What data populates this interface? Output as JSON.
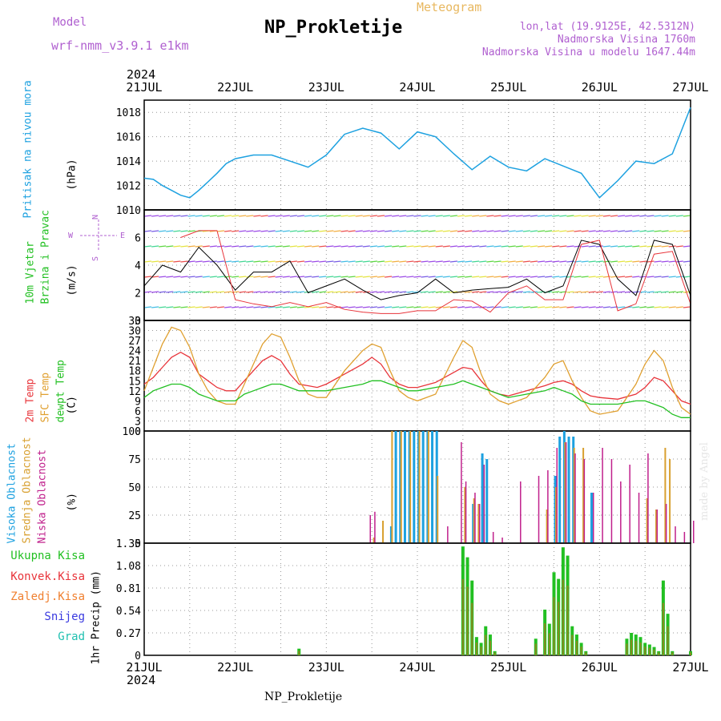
{
  "header": {
    "model_label": "Model",
    "model_name": "wrf-nmm_v3.9.1 e1km",
    "title": "NP_Prokletije",
    "subtitle": "Meteogram",
    "lonlat": "lon,lat (19.9125E, 42.5312N)",
    "elevation": "Nadmorska Visina 1760m",
    "model_elevation": "Nadmorska Visina u modelu 1647.44m",
    "footer_title": "NP_Prokletije",
    "made_by": "made by Angel",
    "year_top": "2024",
    "year_bottom": "2024"
  },
  "time_axis": {
    "labels": [
      "21JUL",
      "22JUL",
      "23JUL",
      "24JUL",
      "25JUL",
      "26JUL",
      "27JUL"
    ]
  },
  "colors": {
    "pressure": "#1da1e0",
    "t2m": "#e8343a",
    "sfc": "#e0a030",
    "dewpt": "#22c022",
    "high_cloud": "#1da1e0",
    "mid_cloud": "#d8a030",
    "low_cloud": "#c0208c",
    "precip_total": "#22c022",
    "precip_conv": "#e8343a",
    "wind_speed": "#000000"
  },
  "chart_data": [
    {
      "type": "line",
      "name": "pressure",
      "ylabel_1": "Pritisak na nivou mora",
      "ylabel_2": "(hPa)",
      "ylim": [
        1010,
        1019
      ],
      "yticks": [
        1010,
        1012,
        1014,
        1016,
        1018
      ],
      "x_days": [
        0.0,
        0.1,
        0.2,
        0.3,
        0.4,
        0.5,
        0.6,
        0.7,
        0.8,
        0.9,
        1.0,
        1.2,
        1.4,
        1.6,
        1.8,
        2.0,
        2.2,
        2.4,
        2.6,
        2.8,
        3.0,
        3.2,
        3.4,
        3.6,
        3.8,
        4.0,
        4.2,
        4.4,
        4.6,
        4.8,
        5.0,
        5.2,
        5.4,
        5.6,
        5.8,
        6.0
      ],
      "values": [
        1012.6,
        1012.5,
        1012.0,
        1011.6,
        1011.2,
        1011.0,
        1011.6,
        1012.3,
        1013.0,
        1013.8,
        1014.2,
        1014.5,
        1014.5,
        1014.0,
        1013.5,
        1014.5,
        1016.2,
        1016.7,
        1016.3,
        1015.0,
        1016.4,
        1016.0,
        1014.6,
        1013.3,
        1014.4,
        1013.5,
        1013.2,
        1014.2,
        1013.6,
        1013.0,
        1011.0,
        1012.4,
        1014.0,
        1013.8,
        1014.6,
        1018.4
      ],
      "series_colors_key": "pressure"
    },
    {
      "type": "line",
      "name": "wind",
      "ylabel_1": "10m Vjetar",
      "ylabel_2": "Brzina i Pravac",
      "ylabel_3": "(m/s)",
      "ylim": [
        0,
        8
      ],
      "yticks": [
        0,
        2,
        4,
        6
      ],
      "compass": {
        "w": "W",
        "e": "E",
        "n": "N",
        "s": "S"
      },
      "x_days": [
        0.0,
        0.2,
        0.4,
        0.6,
        0.8,
        1.0,
        1.2,
        1.4,
        1.6,
        1.8,
        2.0,
        2.2,
        2.4,
        2.6,
        2.8,
        3.0,
        3.2,
        3.4,
        3.6,
        3.8,
        4.0,
        4.2,
        4.4,
        4.6,
        4.8,
        5.0,
        5.2,
        5.4,
        5.6,
        5.8,
        6.0
      ],
      "values": [
        2.5,
        4.0,
        3.5,
        5.3,
        4.0,
        2.2,
        3.5,
        3.5,
        4.3,
        2.0,
        2.5,
        3.0,
        2.2,
        1.5,
        1.8,
        2.0,
        3.0,
        2.0,
        2.2,
        2.3,
        2.4,
        3.0,
        2.0,
        2.5,
        5.8,
        5.5,
        3.0,
        1.8,
        5.8,
        5.5,
        1.8
      ],
      "gust_x_days": [
        0.4,
        0.6,
        0.8,
        1.0,
        1.2,
        1.4,
        1.6,
        1.8,
        2.0,
        2.2,
        2.4,
        2.6,
        2.8,
        3.0,
        3.2,
        3.4,
        3.6,
        3.8,
        4.0,
        4.2,
        4.4,
        4.6,
        4.8,
        5.0,
        5.2,
        5.4,
        5.6,
        5.8,
        6.0
      ],
      "gust_values": [
        6.0,
        6.5,
        6.5,
        1.5,
        1.2,
        1.0,
        1.3,
        1.0,
        1.3,
        0.8,
        0.6,
        0.5,
        0.5,
        0.7,
        0.7,
        1.5,
        1.4,
        0.6,
        2.0,
        2.5,
        1.5,
        1.5,
        5.5,
        5.8,
        0.7,
        1.2,
        4.8,
        5.0,
        1.2
      ]
    },
    {
      "type": "line",
      "name": "temperature",
      "ylabel_1": "2m Temp",
      "ylabel_2": "SFC Temp",
      "ylabel_3": "dewpt Temp",
      "ylabel_4": "(C)",
      "ylim": [
        0,
        33
      ],
      "yticks": [
        0,
        3,
        6,
        9,
        12,
        15,
        18,
        21,
        24,
        27,
        30,
        33
      ],
      "x_days": [
        0.0,
        0.1,
        0.2,
        0.3,
        0.4,
        0.5,
        0.6,
        0.7,
        0.8,
        0.9,
        1.0,
        1.1,
        1.2,
        1.3,
        1.4,
        1.5,
        1.6,
        1.7,
        1.8,
        1.9,
        2.0,
        2.2,
        2.4,
        2.5,
        2.6,
        2.7,
        2.8,
        2.9,
        3.0,
        3.2,
        3.4,
        3.5,
        3.6,
        3.7,
        3.8,
        3.9,
        4.0,
        4.2,
        4.4,
        4.5,
        4.6,
        4.7,
        4.8,
        4.9,
        5.0,
        5.2,
        5.4,
        5.5,
        5.6,
        5.7,
        5.8,
        5.9,
        6.0
      ],
      "series": [
        {
          "name": "2m Temp",
          "color_key": "t2m",
          "values": [
            14,
            16,
            19,
            22,
            23.5,
            22,
            17,
            15,
            13,
            12,
            12,
            15,
            18,
            21,
            22.5,
            21,
            17,
            14,
            13.5,
            13,
            14,
            17,
            20,
            22,
            20,
            16,
            14,
            13,
            13,
            14.5,
            17.5,
            19,
            18.5,
            15,
            12,
            11,
            10.5,
            12,
            13.5,
            14.5,
            15,
            14,
            12,
            10.5,
            10,
            9.5,
            11,
            13,
            16,
            15,
            12,
            9,
            8
          ]
        },
        {
          "name": "SFC Temp",
          "color_key": "sfc",
          "values": [
            12,
            19,
            26,
            31,
            30,
            25,
            17,
            12,
            9,
            8,
            8,
            14,
            20,
            26,
            29,
            28,
            22,
            15,
            11,
            10,
            10,
            18,
            24,
            26,
            25,
            18,
            12,
            10,
            9,
            11,
            22,
            27,
            25,
            17,
            11,
            9,
            8,
            10,
            16,
            20,
            21,
            15,
            10,
            6,
            5,
            6,
            14,
            20,
            24,
            21,
            13,
            7,
            5
          ]
        },
        {
          "name": "dewpt Temp",
          "color_key": "dewpt",
          "values": [
            10,
            12,
            13,
            14,
            14,
            13,
            11,
            10,
            9,
            9,
            9,
            11,
            12,
            13,
            14,
            14,
            13,
            12,
            12,
            12,
            12,
            13,
            14,
            15,
            15,
            14,
            13,
            12,
            12,
            13,
            14,
            15,
            14,
            13,
            12,
            11,
            10,
            11,
            12,
            13,
            12,
            11,
            9,
            8,
            8,
            8,
            9,
            9,
            8,
            7,
            5,
            4,
            4
          ]
        }
      ]
    },
    {
      "type": "bar",
      "name": "clouds",
      "ylabel_1": "Visoka Oblacnost",
      "ylabel_2": "Srednja Oblacnost",
      "ylabel_3": "Niska Oblacnost",
      "ylabel_4": "(%)",
      "ylim": [
        0,
        100
      ],
      "yticks": [
        0,
        25,
        50,
        75,
        100
      ],
      "series": [
        {
          "name": "Visoka Oblacnost",
          "color_key": "high_cloud",
          "x_days": [
            2.7,
            2.75,
            2.8,
            2.85,
            2.9,
            2.95,
            3.0,
            3.05,
            3.1,
            3.15,
            3.2,
            3.6,
            3.7,
            3.75,
            4.5,
            4.55,
            4.6,
            4.65,
            4.7,
            4.9
          ],
          "values": [
            15,
            100,
            100,
            100,
            100,
            100,
            100,
            100,
            100,
            100,
            100,
            35,
            80,
            75,
            60,
            95,
            100,
            95,
            95,
            45
          ]
        },
        {
          "name": "Srednja Oblacnost",
          "color_key": "mid_cloud",
          "x_days": [
            2.5,
            2.6,
            2.7,
            2.8,
            2.9,
            3.0,
            3.1,
            3.2,
            3.5,
            3.6,
            3.65,
            4.4,
            4.5,
            4.6,
            4.7,
            4.8,
            5.5,
            5.6,
            5.7,
            5.75
          ],
          "values": [
            5,
            20,
            100,
            100,
            100,
            100,
            100,
            60,
            50,
            40,
            35,
            30,
            50,
            90,
            85,
            85,
            40,
            30,
            85,
            75
          ]
        },
        {
          "name": "Niska Oblacnost",
          "color_key": "low_cloud",
          "x_days": [
            2.45,
            2.5,
            3.3,
            3.45,
            3.5,
            3.6,
            3.65,
            3.7,
            3.8,
            3.9,
            4.1,
            4.3,
            4.4,
            4.5,
            4.6,
            4.7,
            4.8,
            4.9,
            5.0,
            5.1,
            5.2,
            5.3,
            5.4,
            5.5,
            5.6,
            5.7,
            5.8,
            5.9,
            6.0
          ],
          "values": [
            25,
            28,
            15,
            90,
            55,
            45,
            35,
            70,
            10,
            5,
            55,
            60,
            65,
            85,
            90,
            80,
            75,
            45,
            85,
            75,
            55,
            70,
            45,
            80,
            30,
            35,
            15,
            10,
            20
          ]
        }
      ]
    },
    {
      "type": "bar",
      "name": "precipitation",
      "ylabel_1": "1hr Precip (mm)",
      "legend": [
        "Ukupna Kisa",
        "Konvek.Kisa",
        "Zaledj.Kisa",
        "Snijeg",
        "Grad"
      ],
      "legend_colors": [
        "#22c022",
        "#e8343a",
        "#f08030",
        "#3a3ae0",
        "#20c0b0"
      ],
      "ylim": [
        0,
        1.35
      ],
      "yticks": [
        0,
        0.27,
        0.54,
        0.81,
        1.08,
        1.35
      ],
      "ytick_labels": [
        "0",
        "0.27",
        "0.54",
        "0.81",
        "1.08",
        "1.35"
      ],
      "x_days": [
        1.7,
        3.5,
        3.55,
        3.6,
        3.65,
        3.7,
        3.75,
        3.8,
        3.85,
        4.3,
        4.4,
        4.45,
        4.5,
        4.55,
        4.6,
        4.65,
        4.7,
        4.75,
        4.8,
        4.85,
        5.3,
        5.35,
        5.4,
        5.45,
        5.5,
        5.55,
        5.6,
        5.65,
        5.7,
        5.75,
        5.8,
        6.0
      ],
      "values": [
        0.08,
        1.31,
        1.18,
        0.9,
        0.22,
        0.15,
        0.35,
        0.25,
        0.05,
        0.2,
        0.55,
        0.38,
        1.0,
        0.92,
        1.3,
        1.2,
        0.35,
        0.25,
        0.15,
        0.05,
        0.2,
        0.27,
        0.25,
        0.22,
        0.15,
        0.13,
        0.1,
        0.05,
        0.9,
        0.5,
        0.05,
        0.05
      ]
    }
  ]
}
